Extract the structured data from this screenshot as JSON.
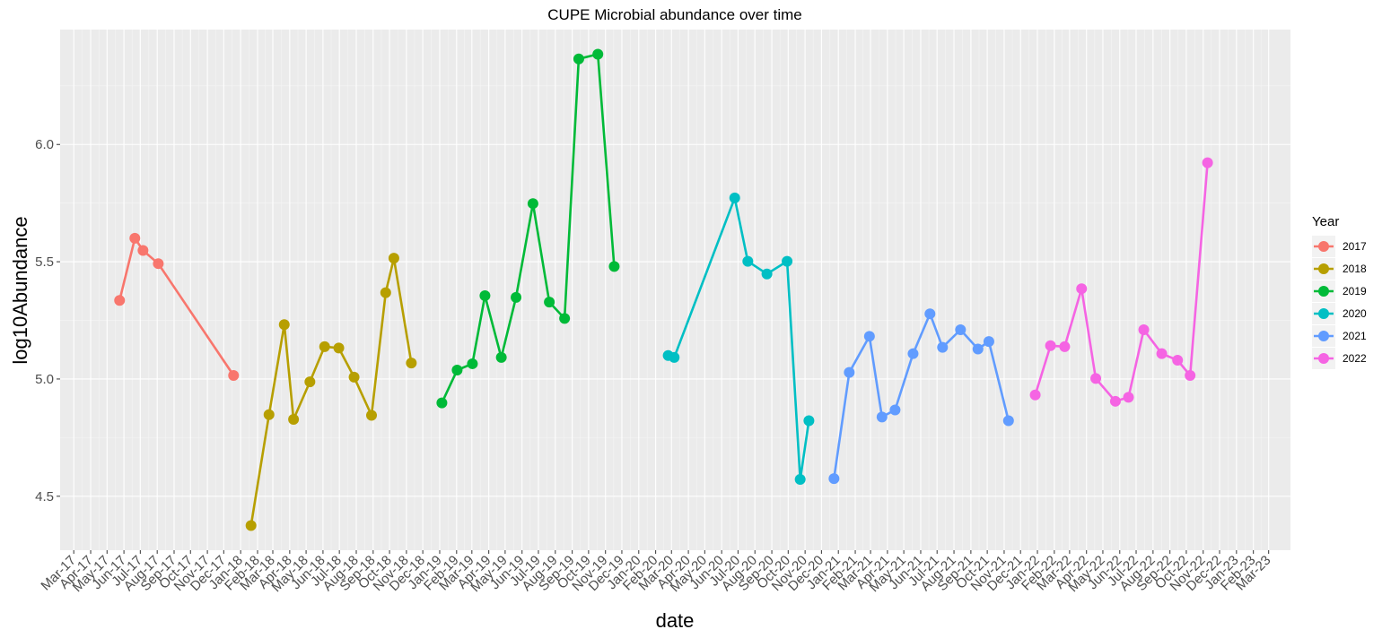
{
  "chart_data": {
    "type": "line",
    "title": "CUPE Microbial abundance over time",
    "xlabel": "date",
    "ylabel": "log10Abundance",
    "ylim": [
      4.27,
      6.49
    ],
    "yticks": [
      4.5,
      5.0,
      5.5,
      6.0
    ],
    "ytick_labels": [
      "4.5",
      "5.0",
      "5.5",
      "6.0"
    ],
    "xlim": [
      "2017-02-04",
      "2023-04-10"
    ],
    "xticks": [
      "2017-03-01",
      "2017-04-01",
      "2017-05-01",
      "2017-06-01",
      "2017-07-01",
      "2017-08-01",
      "2017-09-01",
      "2017-10-01",
      "2017-11-01",
      "2017-12-01",
      "2018-01-01",
      "2018-02-01",
      "2018-03-01",
      "2018-04-01",
      "2018-05-01",
      "2018-06-01",
      "2018-07-01",
      "2018-08-01",
      "2018-09-01",
      "2018-10-01",
      "2018-11-01",
      "2018-12-01",
      "2019-01-01",
      "2019-02-01",
      "2019-03-01",
      "2019-04-01",
      "2019-05-01",
      "2019-06-01",
      "2019-07-01",
      "2019-08-01",
      "2019-09-01",
      "2019-10-01",
      "2019-11-01",
      "2019-12-01",
      "2020-01-01",
      "2020-02-01",
      "2020-03-01",
      "2020-04-01",
      "2020-05-01",
      "2020-06-01",
      "2020-07-01",
      "2020-08-01",
      "2020-09-01",
      "2020-10-01",
      "2020-11-01",
      "2020-12-01",
      "2021-01-01",
      "2021-02-01",
      "2021-03-01",
      "2021-04-01",
      "2021-05-01",
      "2021-06-01",
      "2021-07-01",
      "2021-08-01",
      "2021-09-01",
      "2021-10-01",
      "2021-11-01",
      "2021-12-01",
      "2022-01-01",
      "2022-02-01",
      "2022-03-01",
      "2022-04-01",
      "2022-05-01",
      "2022-06-01",
      "2022-07-01",
      "2022-08-01",
      "2022-09-01",
      "2022-10-01",
      "2022-11-01",
      "2022-12-01",
      "2023-01-01",
      "2023-02-01",
      "2023-03-01"
    ],
    "xtick_labels": [
      "Mar-17",
      "Apr-17",
      "May-17",
      "Jun-17",
      "Jul-17",
      "Aug-17",
      "Sep-17",
      "Oct-17",
      "Nov-17",
      "Dec-17",
      "Jan-18",
      "Feb-18",
      "Mar-18",
      "Apr-18",
      "May-18",
      "Jun-18",
      "Jul-18",
      "Aug-18",
      "Sep-18",
      "Oct-18",
      "Nov-18",
      "Dec-18",
      "Jan-19",
      "Feb-19",
      "Mar-19",
      "Apr-19",
      "May-19",
      "Jun-19",
      "Jul-19",
      "Aug-19",
      "Sep-19",
      "Oct-19",
      "Nov-19",
      "Dec-19",
      "Jan-20",
      "Feb-20",
      "Mar-20",
      "Apr-20",
      "May-20",
      "Jun-20",
      "Jul-20",
      "Aug-20",
      "Sep-20",
      "Oct-20",
      "Nov-20",
      "Dec-20",
      "Jan-21",
      "Feb-21",
      "Mar-21",
      "Apr-21",
      "May-21",
      "Jun-21",
      "Jul-21",
      "Aug-21",
      "Sep-21",
      "Oct-21",
      "Nov-21",
      "Dec-21",
      "Jan-22",
      "Feb-22",
      "Mar-22",
      "Apr-22",
      "May-22",
      "Jun-22",
      "Jul-22",
      "Aug-22",
      "Sep-22",
      "Oct-22",
      "Nov-22",
      "Dec-22",
      "Jan-23",
      "Feb-23",
      "Mar-23"
    ],
    "grid": true,
    "legend": {
      "title": "Year",
      "position": "right"
    },
    "series": [
      {
        "name": "2017",
        "color": "#F8766D",
        "points": [
          [
            "2017-05-24",
            5.335
          ],
          [
            "2017-06-21",
            5.6
          ],
          [
            "2017-07-06",
            5.548
          ],
          [
            "2017-08-03",
            5.492
          ],
          [
            "2017-12-19",
            5.015
          ]
        ]
      },
      {
        "name": "2018",
        "color": "#B79F00",
        "points": [
          [
            "2018-01-20",
            4.375
          ],
          [
            "2018-02-22",
            4.848
          ],
          [
            "2018-03-22",
            5.232
          ],
          [
            "2018-04-08",
            4.828
          ],
          [
            "2018-05-08",
            4.988
          ],
          [
            "2018-06-04",
            5.138
          ],
          [
            "2018-06-30",
            5.132
          ],
          [
            "2018-07-28",
            5.008
          ],
          [
            "2018-08-29",
            4.845
          ],
          [
            "2018-09-24",
            5.368
          ],
          [
            "2018-10-09",
            5.515
          ],
          [
            "2018-11-10",
            5.068
          ]
        ]
      },
      {
        "name": "2019",
        "color": "#00BA38",
        "points": [
          [
            "2019-01-05",
            4.898
          ],
          [
            "2019-02-02",
            5.038
          ],
          [
            "2019-03-02",
            5.065
          ],
          [
            "2019-03-25",
            5.355
          ],
          [
            "2019-04-24",
            5.092
          ],
          [
            "2019-05-21",
            5.348
          ],
          [
            "2019-06-21",
            5.748
          ],
          [
            "2019-07-21",
            5.328
          ],
          [
            "2019-08-18",
            5.258
          ],
          [
            "2019-09-13",
            6.365
          ],
          [
            "2019-10-18",
            6.385
          ],
          [
            "2019-11-17",
            5.48
          ]
        ]
      },
      {
        "name": "2020",
        "color": "#00BFC4",
        "points": [
          [
            "2020-02-24",
            5.1
          ],
          [
            "2020-03-06",
            5.092
          ],
          [
            "2020-06-25",
            5.772
          ],
          [
            "2020-07-19",
            5.502
          ],
          [
            "2020-08-23",
            5.448
          ],
          [
            "2020-09-29",
            5.502
          ],
          [
            "2020-10-23",
            4.572
          ],
          [
            "2020-11-08",
            4.822
          ]
        ]
      },
      {
        "name": "2021",
        "color": "#619CFF",
        "points": [
          [
            "2020-12-24",
            4.575
          ],
          [
            "2021-01-21",
            5.028
          ],
          [
            "2021-02-27",
            5.182
          ],
          [
            "2021-03-22",
            4.838
          ],
          [
            "2021-04-15",
            4.868
          ],
          [
            "2021-05-18",
            5.108
          ],
          [
            "2021-06-18",
            5.278
          ],
          [
            "2021-07-11",
            5.135
          ],
          [
            "2021-08-13",
            5.21
          ],
          [
            "2021-09-14",
            5.128
          ],
          [
            "2021-10-04",
            5.16
          ],
          [
            "2021-11-09",
            4.822
          ]
        ]
      },
      {
        "name": "2022",
        "color": "#F564E3",
        "points": [
          [
            "2021-12-28",
            4.932
          ],
          [
            "2022-01-25",
            5.142
          ],
          [
            "2022-02-20",
            5.138
          ],
          [
            "2022-03-23",
            5.385
          ],
          [
            "2022-04-18",
            5.002
          ],
          [
            "2022-05-24",
            4.905
          ],
          [
            "2022-06-17",
            4.922
          ],
          [
            "2022-07-15",
            5.21
          ],
          [
            "2022-08-17",
            5.108
          ],
          [
            "2022-09-15",
            5.08
          ],
          [
            "2022-10-08",
            5.015
          ],
          [
            "2022-11-09",
            5.922
          ]
        ]
      }
    ]
  }
}
